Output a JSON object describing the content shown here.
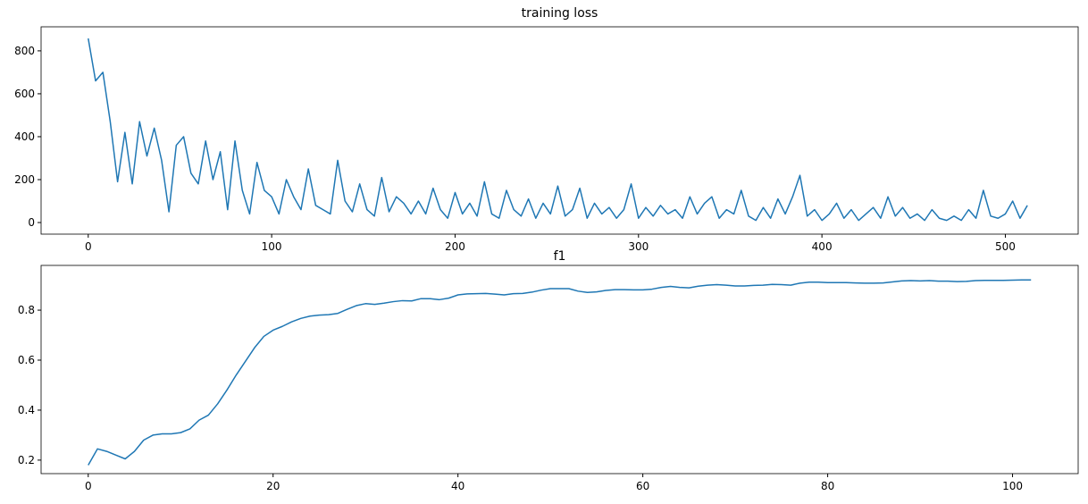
{
  "chart_data": [
    {
      "type": "line",
      "title": "training loss",
      "color": "#1f77b4",
      "x": [
        0,
        4,
        8,
        12,
        16,
        20,
        24,
        28,
        32,
        36,
        40,
        44,
        48,
        52,
        56,
        60,
        64,
        68,
        72,
        76,
        80,
        84,
        88,
        92,
        96,
        100,
        104,
        108,
        112,
        116,
        120,
        124,
        128,
        132,
        136,
        140,
        144,
        148,
        152,
        156,
        160,
        164,
        168,
        172,
        176,
        180,
        184,
        188,
        192,
        196,
        200,
        204,
        208,
        212,
        216,
        220,
        224,
        228,
        232,
        236,
        240,
        244,
        248,
        252,
        256,
        260,
        264,
        268,
        272,
        276,
        280,
        284,
        288,
        292,
        296,
        300,
        304,
        308,
        312,
        316,
        320,
        324,
        328,
        332,
        336,
        340,
        344,
        348,
        352,
        356,
        360,
        364,
        368,
        372,
        376,
        380,
        384,
        388,
        392,
        396,
        400,
        404,
        408,
        412,
        416,
        420,
        424,
        428,
        432,
        436,
        440,
        444,
        448,
        452,
        456,
        460,
        464,
        468,
        472,
        476,
        480,
        484,
        488,
        492,
        496,
        500,
        504,
        508,
        512
      ],
      "values": [
        858,
        660,
        700,
        470,
        190,
        420,
        180,
        470,
        310,
        440,
        290,
        50,
        360,
        400,
        230,
        180,
        380,
        200,
        330,
        60,
        380,
        150,
        40,
        280,
        150,
        120,
        40,
        200,
        120,
        60,
        250,
        80,
        60,
        40,
        290,
        100,
        50,
        180,
        60,
        30,
        210,
        50,
        120,
        90,
        40,
        100,
        40,
        160,
        60,
        20,
        140,
        40,
        90,
        30,
        190,
        40,
        20,
        150,
        60,
        30,
        110,
        20,
        90,
        40,
        170,
        30,
        60,
        160,
        20,
        90,
        40,
        70,
        20,
        60,
        180,
        20,
        70,
        30,
        80,
        40,
        60,
        20,
        120,
        40,
        90,
        120,
        20,
        60,
        40,
        150,
        30,
        10,
        70,
        20,
        110,
        40,
        120,
        220,
        30,
        60,
        10,
        40,
        90,
        20,
        60,
        10,
        40,
        70,
        20,
        120,
        30,
        70,
        20,
        40,
        10,
        60,
        20,
        10,
        30,
        10,
        60,
        20,
        150,
        30,
        20,
        40,
        100,
        20,
        80
      ],
      "xlim": [
        -25.7,
        539.7
      ],
      "ylim": [
        -54,
        912
      ],
      "xticks": [
        0,
        100,
        200,
        300,
        400,
        500
      ],
      "yticks": [
        0,
        200,
        400,
        600,
        800
      ]
    },
    {
      "type": "line",
      "title": "f1",
      "color": "#1f77b4",
      "x": [
        0,
        1,
        2,
        3,
        4,
        5,
        6,
        7,
        8,
        9,
        10,
        11,
        12,
        13,
        14,
        15,
        16,
        17,
        18,
        19,
        20,
        21,
        22,
        23,
        24,
        25,
        26,
        27,
        28,
        29,
        30,
        31,
        32,
        33,
        34,
        35,
        36,
        37,
        38,
        39,
        40,
        41,
        42,
        43,
        44,
        45,
        46,
        47,
        48,
        49,
        50,
        51,
        52,
        53,
        54,
        55,
        56,
        57,
        58,
        59,
        60,
        61,
        62,
        63,
        64,
        65,
        66,
        67,
        68,
        69,
        70,
        71,
        72,
        73,
        74,
        75,
        76,
        77,
        78,
        79,
        80,
        81,
        82,
        83,
        84,
        85,
        86,
        87,
        88,
        89,
        90,
        91,
        92,
        93,
        94,
        95,
        96,
        97,
        98,
        99,
        100,
        101,
        102
      ],
      "values": [
        0.18,
        0.245,
        0.235,
        0.22,
        0.205,
        0.235,
        0.28,
        0.3,
        0.305,
        0.305,
        0.31,
        0.325,
        0.36,
        0.38,
        0.425,
        0.48,
        0.54,
        0.595,
        0.65,
        0.695,
        0.72,
        0.735,
        0.753,
        0.767,
        0.776,
        0.78,
        0.782,
        0.787,
        0.803,
        0.818,
        0.826,
        0.823,
        0.828,
        0.834,
        0.838,
        0.837,
        0.846,
        0.846,
        0.842,
        0.848,
        0.861,
        0.865,
        0.866,
        0.867,
        0.864,
        0.861,
        0.866,
        0.867,
        0.872,
        0.88,
        0.886,
        0.886,
        0.886,
        0.876,
        0.871,
        0.873,
        0.879,
        0.882,
        0.882,
        0.881,
        0.881,
        0.884,
        0.891,
        0.895,
        0.891,
        0.889,
        0.896,
        0.9,
        0.902,
        0.9,
        0.897,
        0.897,
        0.899,
        0.9,
        0.903,
        0.902,
        0.9,
        0.908,
        0.912,
        0.912,
        0.91,
        0.91,
        0.91,
        0.909,
        0.908,
        0.908,
        0.909,
        0.913,
        0.917,
        0.918,
        0.917,
        0.918,
        0.916,
        0.916,
        0.914,
        0.915,
        0.918,
        0.919,
        0.919,
        0.919,
        0.92,
        0.921,
        0.921
      ],
      "xlim": [
        -5.1,
        107.1
      ],
      "ylim": [
        0.146,
        0.979
      ],
      "xticks": [
        0,
        20,
        40,
        60,
        80,
        100
      ],
      "yticks": [
        0.2,
        0.4,
        0.6,
        0.8
      ]
    }
  ]
}
